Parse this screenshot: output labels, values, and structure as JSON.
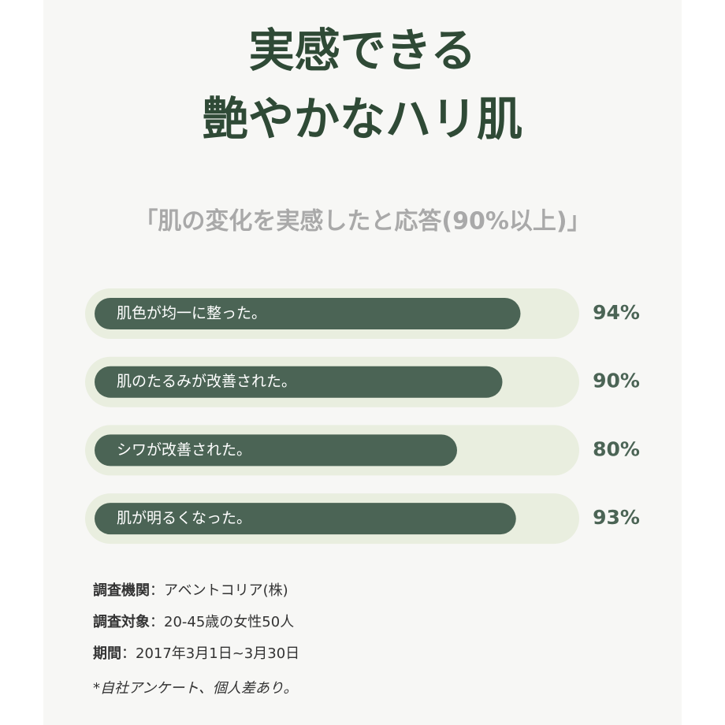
{
  "chart_data": {
    "type": "hbar",
    "title_lines": [
      "実感できる",
      "艶やかなハリ肌"
    ],
    "subtitle": "「肌の変化を実感したと応答(90%以上)」",
    "categories": [
      "肌色が均一に整った。",
      "肌のたるみが改善された。",
      "シワが改善された。",
      "肌が明るくなった。"
    ],
    "values": [
      94,
      90,
      80,
      93
    ],
    "value_labels": [
      "94%",
      "90%",
      "80%",
      "93%"
    ],
    "xlim": [
      0,
      100
    ],
    "color": "#4b6455",
    "track_color": "#e9eedf"
  },
  "notes": [
    {
      "label": "調査機関",
      "text": "：アベントコリア(株)"
    },
    {
      "label": "調査対象",
      "text": "：20-45歳の女性50人"
    },
    {
      "label": "期間",
      "text": "：2017年3月1日~3月30日"
    }
  ],
  "disclaimer": "*自社アンケート、個人差あり。"
}
